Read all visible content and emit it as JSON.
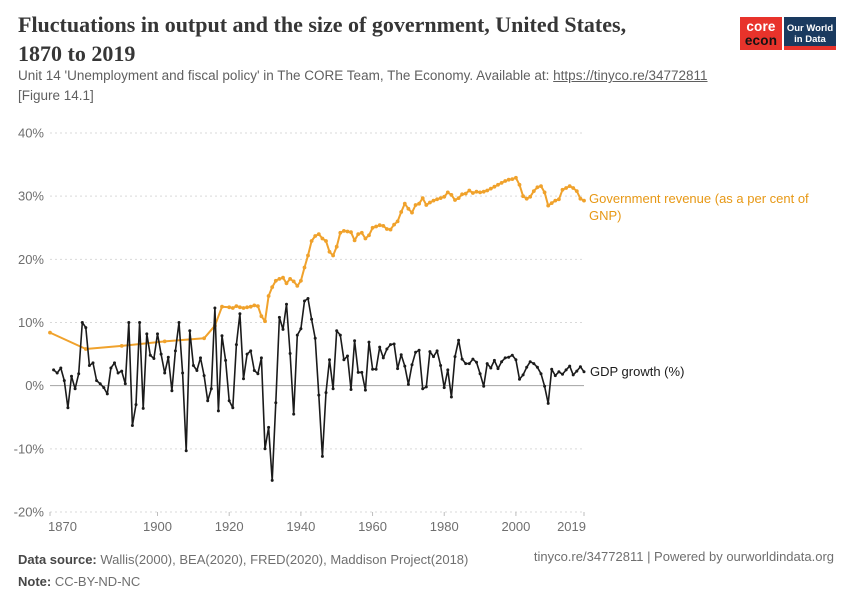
{
  "header": {
    "title_line1": "Fluctuations in output and the size of government, United States,",
    "title_line2": "1870 to 2019",
    "subtitle_prefix": "Unit 14 'Unemployment and fiscal policy' in The CORE Team, The Economy. Available at: ",
    "subtitle_link": "https://tinyco.re/34772811",
    "subtitle_line2": "[Figure 14.1]",
    "logos": {
      "core_top": "core",
      "core_bottom": "econ",
      "owid_line1": "Our World",
      "owid_line2": "in Data"
    }
  },
  "chart": {
    "series_labels": {
      "revenue": "Government revenue (as a per cent of GNP)",
      "gdp": "GDP growth (%)"
    }
  },
  "chart_data": {
    "type": "line",
    "title": "Fluctuations in output and the size of government, United States, 1870 to 2019",
    "xlabel": "",
    "ylabel": "",
    "xlim": [
      1870,
      2019
    ],
    "ylim": [
      -20,
      40
    ],
    "xticks": [
      1870,
      1900,
      1920,
      1940,
      1960,
      1980,
      2000,
      2019
    ],
    "yticks": [
      40,
      30,
      20,
      10,
      0,
      -10,
      -20
    ],
    "ytick_suffix": "%",
    "grid": true,
    "gridline_color": "#d9d9d9",
    "zero_line_color": "#a3a3a3",
    "tick_label_color": "#6f6f6f",
    "legend_position": "right-inline",
    "series": [
      {
        "name": "Government revenue (as a per cent of GNP)",
        "color": "#f0a22c",
        "marker_radius": 1.9,
        "stroke_width": 2,
        "points": [
          [
            1870,
            8.4
          ],
          [
            1880,
            5.8
          ],
          [
            1890,
            6.3
          ],
          [
            1902,
            7.0
          ],
          [
            1913,
            7.5
          ],
          [
            1916,
            9.5
          ],
          [
            1918,
            12.5
          ],
          [
            1920,
            12.4
          ],
          [
            1921,
            12.3
          ],
          [
            1922,
            12.6
          ],
          [
            1923,
            12.4
          ],
          [
            1924,
            12.3
          ],
          [
            1925,
            12.4
          ],
          [
            1926,
            12.5
          ],
          [
            1927,
            12.7
          ],
          [
            1928,
            12.6
          ],
          [
            1929,
            11.0
          ],
          [
            1930,
            10.2
          ],
          [
            1931,
            14.2
          ],
          [
            1932,
            15.6
          ],
          [
            1933,
            16.6
          ],
          [
            1934,
            16.9
          ],
          [
            1935,
            17.1
          ],
          [
            1936,
            16.2
          ],
          [
            1937,
            16.9
          ],
          [
            1938,
            16.5
          ],
          [
            1939,
            15.8
          ],
          [
            1940,
            16.6
          ],
          [
            1941,
            18.7
          ],
          [
            1942,
            20.6
          ],
          [
            1943,
            22.9
          ],
          [
            1944,
            23.7
          ],
          [
            1945,
            24.0
          ],
          [
            1946,
            23.3
          ],
          [
            1947,
            22.9
          ],
          [
            1948,
            21.2
          ],
          [
            1949,
            20.6
          ],
          [
            1950,
            22.0
          ],
          [
            1951,
            24.2
          ],
          [
            1952,
            24.5
          ],
          [
            1953,
            24.4
          ],
          [
            1954,
            24.3
          ],
          [
            1955,
            23.0
          ],
          [
            1956,
            24.0
          ],
          [
            1957,
            24.2
          ],
          [
            1958,
            23.3
          ],
          [
            1959,
            23.8
          ],
          [
            1960,
            25.0
          ],
          [
            1961,
            25.2
          ],
          [
            1962,
            25.4
          ],
          [
            1963,
            25.3
          ],
          [
            1964,
            24.8
          ],
          [
            1965,
            24.7
          ],
          [
            1966,
            25.5
          ],
          [
            1967,
            26.0
          ],
          [
            1968,
            27.5
          ],
          [
            1969,
            28.8
          ],
          [
            1970,
            28.0
          ],
          [
            1971,
            27.4
          ],
          [
            1972,
            28.6
          ],
          [
            1973,
            28.8
          ],
          [
            1974,
            29.7
          ],
          [
            1975,
            28.6
          ],
          [
            1976,
            29.0
          ],
          [
            1977,
            29.3
          ],
          [
            1978,
            29.5
          ],
          [
            1979,
            29.7
          ],
          [
            1980,
            29.9
          ],
          [
            1981,
            30.6
          ],
          [
            1982,
            30.2
          ],
          [
            1983,
            29.4
          ],
          [
            1984,
            29.7
          ],
          [
            1985,
            30.3
          ],
          [
            1986,
            30.4
          ],
          [
            1987,
            30.9
          ],
          [
            1988,
            30.5
          ],
          [
            1989,
            30.7
          ],
          [
            1990,
            30.6
          ],
          [
            1991,
            30.7
          ],
          [
            1992,
            30.9
          ],
          [
            1993,
            31.2
          ],
          [
            1994,
            31.5
          ],
          [
            1995,
            31.8
          ],
          [
            1996,
            32.1
          ],
          [
            1997,
            32.4
          ],
          [
            1998,
            32.6
          ],
          [
            1999,
            32.7
          ],
          [
            2000,
            32.9
          ],
          [
            2001,
            31.8
          ],
          [
            2002,
            30.0
          ],
          [
            2003,
            29.6
          ],
          [
            2004,
            29.9
          ],
          [
            2005,
            30.8
          ],
          [
            2006,
            31.4
          ],
          [
            2007,
            31.6
          ],
          [
            2008,
            30.6
          ],
          [
            2009,
            28.5
          ],
          [
            2010,
            28.9
          ],
          [
            2011,
            29.3
          ],
          [
            2012,
            29.5
          ],
          [
            2013,
            31.0
          ],
          [
            2014,
            31.3
          ],
          [
            2015,
            31.6
          ],
          [
            2016,
            31.3
          ],
          [
            2017,
            30.8
          ],
          [
            2018,
            29.6
          ],
          [
            2019,
            29.3
          ]
        ]
      },
      {
        "name": "GDP growth (%)",
        "color": "#1b1b1b",
        "marker_radius": 1.5,
        "stroke_width": 1.6,
        "points": [
          [
            1871,
            2.5
          ],
          [
            1872,
            2.0
          ],
          [
            1873,
            2.8
          ],
          [
            1874,
            0.8
          ],
          [
            1875,
            -3.5
          ],
          [
            1876,
            1.5
          ],
          [
            1877,
            -0.5
          ],
          [
            1878,
            1.9
          ],
          [
            1879,
            10.0
          ],
          [
            1880,
            9.2
          ],
          [
            1881,
            3.2
          ],
          [
            1882,
            3.6
          ],
          [
            1883,
            0.8
          ],
          [
            1884,
            0.3
          ],
          [
            1885,
            -0.3
          ],
          [
            1886,
            -1.3
          ],
          [
            1887,
            2.8
          ],
          [
            1888,
            3.6
          ],
          [
            1889,
            2.0
          ],
          [
            1890,
            2.3
          ],
          [
            1891,
            0.3
          ],
          [
            1892,
            10.0
          ],
          [
            1893,
            -6.3
          ],
          [
            1894,
            -3.0
          ],
          [
            1895,
            10.0
          ],
          [
            1896,
            -3.6
          ],
          [
            1897,
            8.2
          ],
          [
            1898,
            4.8
          ],
          [
            1899,
            4.3
          ],
          [
            1900,
            8.2
          ],
          [
            1901,
            5.0
          ],
          [
            1902,
            2.0
          ],
          [
            1903,
            4.5
          ],
          [
            1904,
            -0.8
          ],
          [
            1905,
            5.5
          ],
          [
            1906,
            10.0
          ],
          [
            1907,
            2.0
          ],
          [
            1908,
            -10.3
          ],
          [
            1909,
            8.7
          ],
          [
            1910,
            3.2
          ],
          [
            1911,
            2.4
          ],
          [
            1912,
            4.4
          ],
          [
            1913,
            1.6
          ],
          [
            1914,
            -2.4
          ],
          [
            1915,
            -0.5
          ],
          [
            1916,
            12.3
          ],
          [
            1917,
            -4.0
          ],
          [
            1918,
            7.9
          ],
          [
            1919,
            4.0
          ],
          [
            1920,
            -2.4
          ],
          [
            1921,
            -3.5
          ],
          [
            1922,
            6.5
          ],
          [
            1923,
            11.4
          ],
          [
            1924,
            1.1
          ],
          [
            1925,
            5.0
          ],
          [
            1926,
            5.5
          ],
          [
            1927,
            2.4
          ],
          [
            1928,
            1.9
          ],
          [
            1929,
            4.4
          ],
          [
            1930,
            -10.0
          ],
          [
            1931,
            -6.6
          ],
          [
            1932,
            -15.0
          ],
          [
            1933,
            -2.7
          ],
          [
            1934,
            10.8
          ],
          [
            1935,
            8.9
          ],
          [
            1936,
            12.9
          ],
          [
            1937,
            5.1
          ],
          [
            1938,
            -4.5
          ],
          [
            1939,
            8.0
          ],
          [
            1940,
            9.0
          ],
          [
            1941,
            13.4
          ],
          [
            1942,
            13.8
          ],
          [
            1943,
            10.5
          ],
          [
            1944,
            7.5
          ],
          [
            1945,
            -1.5
          ],
          [
            1946,
            -11.2
          ],
          [
            1947,
            -1.1
          ],
          [
            1948,
            4.1
          ],
          [
            1949,
            -0.5
          ],
          [
            1950,
            8.7
          ],
          [
            1951,
            8.0
          ],
          [
            1952,
            4.1
          ],
          [
            1953,
            4.7
          ],
          [
            1954,
            -0.6
          ],
          [
            1955,
            7.1
          ],
          [
            1956,
            2.1
          ],
          [
            1957,
            2.1
          ],
          [
            1958,
            -0.7
          ],
          [
            1959,
            6.9
          ],
          [
            1960,
            2.6
          ],
          [
            1961,
            2.6
          ],
          [
            1962,
            6.1
          ],
          [
            1963,
            4.4
          ],
          [
            1964,
            5.8
          ],
          [
            1965,
            6.5
          ],
          [
            1966,
            6.6
          ],
          [
            1967,
            2.7
          ],
          [
            1968,
            4.9
          ],
          [
            1969,
            3.1
          ],
          [
            1970,
            0.2
          ],
          [
            1971,
            3.3
          ],
          [
            1972,
            5.3
          ],
          [
            1973,
            5.6
          ],
          [
            1974,
            -0.5
          ],
          [
            1975,
            -0.2
          ],
          [
            1976,
            5.4
          ],
          [
            1977,
            4.6
          ],
          [
            1978,
            5.5
          ],
          [
            1979,
            3.2
          ],
          [
            1980,
            -0.3
          ],
          [
            1981,
            2.5
          ],
          [
            1982,
            -1.8
          ],
          [
            1983,
            4.6
          ],
          [
            1984,
            7.2
          ],
          [
            1985,
            4.2
          ],
          [
            1986,
            3.5
          ],
          [
            1987,
            3.5
          ],
          [
            1988,
            4.2
          ],
          [
            1989,
            3.7
          ],
          [
            1990,
            1.9
          ],
          [
            1991,
            -0.1
          ],
          [
            1992,
            3.5
          ],
          [
            1993,
            2.8
          ],
          [
            1994,
            4.0
          ],
          [
            1995,
            2.7
          ],
          [
            1996,
            3.8
          ],
          [
            1997,
            4.4
          ],
          [
            1998,
            4.5
          ],
          [
            1999,
            4.8
          ],
          [
            2000,
            4.1
          ],
          [
            2001,
            1.0
          ],
          [
            2002,
            1.7
          ],
          [
            2003,
            2.9
          ],
          [
            2004,
            3.8
          ],
          [
            2005,
            3.5
          ],
          [
            2006,
            2.9
          ],
          [
            2007,
            1.9
          ],
          [
            2008,
            -0.1
          ],
          [
            2009,
            -2.8
          ],
          [
            2010,
            2.6
          ],
          [
            2011,
            1.6
          ],
          [
            2012,
            2.2
          ],
          [
            2013,
            1.8
          ],
          [
            2014,
            2.5
          ],
          [
            2015,
            3.1
          ],
          [
            2016,
            1.7
          ],
          [
            2017,
            2.3
          ],
          [
            2018,
            3.0
          ],
          [
            2019,
            2.2
          ]
        ]
      }
    ]
  },
  "footer": {
    "source_label": "Data source:",
    "source_text": " Wallis(2000), BEA(2020), FRED(2020), Maddison Project(2018)",
    "note_label": "Note:",
    "note_text": " CC-BY-ND-NC",
    "right_text": "tinyco.re/34772811 | Powered by ourworldindata.org"
  }
}
